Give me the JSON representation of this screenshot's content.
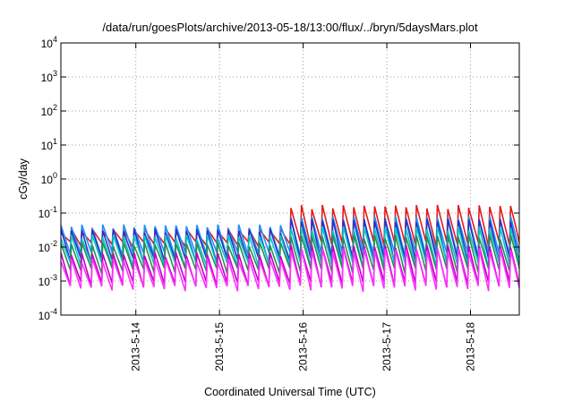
{
  "chart_data": {
    "type": "line",
    "title": "/data/run/goesPlots/archive/2013-05-18/13:00/flux/../bryn/5daysMars.plot",
    "xlabel": "Coordinated Universal Time (UTC)",
    "ylabel": "cGy/day",
    "yscale": "log",
    "ylim": [
      0.0001,
      10000
    ],
    "xlim": [
      "2013-05-13T02:30",
      "2013-05-18T14:00"
    ],
    "grid": true,
    "y_ticks": [
      {
        "value": 0.0001,
        "base": "10",
        "exp": "-4"
      },
      {
        "value": 0.001,
        "base": "10",
        "exp": "-3"
      },
      {
        "value": 0.01,
        "base": "10",
        "exp": "-2"
      },
      {
        "value": 0.1,
        "base": "10",
        "exp": "-1"
      },
      {
        "value": 1,
        "base": "10",
        "exp": "0"
      },
      {
        "value": 10,
        "base": "10",
        "exp": "1"
      },
      {
        "value": 100,
        "base": "10",
        "exp": "2"
      },
      {
        "value": 1000,
        "base": "10",
        "exp": "3"
      },
      {
        "value": 10000,
        "base": "10",
        "exp": "4"
      }
    ],
    "x_ticks": [
      {
        "value": "2013-05-14T00:00",
        "label": "2013-5-14"
      },
      {
        "value": "2013-05-15T00:00",
        "label": "2013-5-15"
      },
      {
        "value": "2013-05-16T00:00",
        "label": "2013-5-16"
      },
      {
        "value": "2013-05-17T00:00",
        "label": "2013-5-17"
      },
      {
        "value": "2013-05-18T00:00",
        "label": "2013-5-18"
      }
    ],
    "series": [
      {
        "color": "#e41a1c",
        "peak_early": 0.03,
        "peak_late": 0.15,
        "trough": 0.012
      },
      {
        "color": "#1e90ff",
        "peak_early": 0.04,
        "peak_late": 0.07,
        "trough": 0.006
      },
      {
        "color": "#3030c0",
        "peak_early": 0.03,
        "peak_late": 0.06,
        "trough": 0.004
      },
      {
        "color": "#00c8c8",
        "peak_early": 0.02,
        "peak_late": 0.035,
        "trough": 0.003
      },
      {
        "color": "#2e8b57",
        "peak_early": 0.012,
        "peak_late": 0.02,
        "trough": 0.002
      },
      {
        "color": "#c000c0",
        "peak_early": 0.006,
        "peak_late": 0.01,
        "trough": 0.0008
      },
      {
        "color": "#ff30ff",
        "peak_early": 0.004,
        "peak_late": 0.008,
        "trough": 0.0006
      }
    ],
    "oscillation_period_hours": 3
  }
}
